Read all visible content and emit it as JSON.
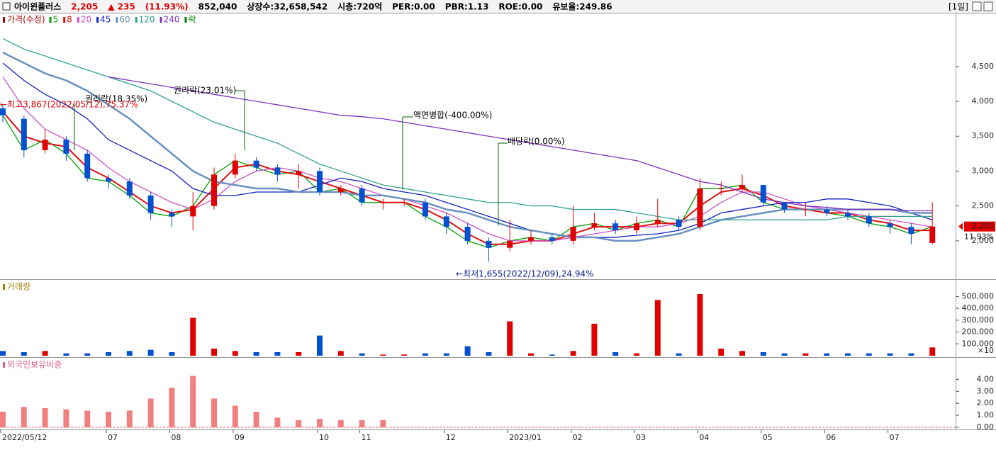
{
  "header": {
    "name": "아이윈플러스",
    "price": "2,205",
    "change": "▲ 235",
    "change_pct": "(11.93%)",
    "volume": "852,040",
    "listed": "상장수:32,658,542",
    "cap": "시총:720억",
    "per": "PER:0.00",
    "pbr": "PBR:1.13",
    "roe": "ROE:0.00",
    "reserve": "유보율:249.86",
    "period": "[1일]"
  },
  "chart_data": [
    {
      "type": "candlestick",
      "title": "가격(수정)",
      "categories": [
        "2022/05/12",
        null,
        null,
        null,
        null,
        "07",
        null,
        null,
        "08",
        null,
        null,
        "09",
        null,
        null,
        null,
        "10",
        null,
        "11",
        null,
        null,
        null,
        "12",
        null,
        null,
        "2023/01",
        null,
        null,
        "02",
        null,
        null,
        "03",
        null,
        null,
        "04",
        null,
        null,
        "05",
        null,
        null,
        "06",
        null,
        null,
        "07",
        null,
        null
      ],
      "open": [
        3900,
        3750,
        3300,
        3450,
        3250,
        2900,
        2850,
        2650,
        2400,
        2350,
        2500,
        2950,
        3150,
        3050,
        2950,
        3000,
        2700,
        2750,
        2550,
        2550,
        2550,
        2350,
        2200,
        2000,
        1900,
        2000,
        2050,
        2000,
        2200,
        2250,
        2150,
        2250,
        2300,
        2200,
        2750,
        2750,
        2800,
        2550,
        2450,
        2450,
        2400,
        2350,
        2250,
        2200,
        1970
      ],
      "high": [
        3950,
        3800,
        3600,
        3500,
        3300,
        2950,
        2900,
        2700,
        2450,
        2700,
        3050,
        3250,
        3200,
        3100,
        3100,
        3050,
        2800,
        2800,
        2600,
        2600,
        2600,
        2400,
        2250,
        2050,
        2300,
        2150,
        2100,
        2500,
        2400,
        2300,
        2350,
        2600,
        2350,
        2900,
        2850,
        2950,
        2800,
        2550,
        2550,
        2500,
        2450,
        2400,
        2300,
        2250,
        2550
      ],
      "low": [
        3700,
        3200,
        3250,
        3150,
        2850,
        2750,
        2600,
        2300,
        2200,
        2150,
        2450,
        2900,
        3000,
        2850,
        2750,
        2650,
        2650,
        2500,
        2450,
        2500,
        2300,
        2100,
        1950,
        1700,
        1850,
        1950,
        1950,
        1950,
        2150,
        2100,
        2100,
        2200,
        2150,
        2150,
        2650,
        2700,
        2500,
        2400,
        2350,
        2350,
        2300,
        2200,
        2100,
        1950,
        1950
      ],
      "close": [
        3800,
        3300,
        3450,
        3250,
        2900,
        2850,
        2650,
        2400,
        2350,
        2500,
        2950,
        3150,
        3050,
        2950,
        3000,
        2700,
        2750,
        2550,
        2550,
        2550,
        2350,
        2200,
        2000,
        1900,
        2000,
        2050,
        2000,
        2200,
        2250,
        2150,
        2250,
        2300,
        2200,
        2750,
        2750,
        2800,
        2550,
        2450,
        2450,
        2400,
        2350,
        2250,
        2200,
        2100,
        2205
      ],
      "up_color": "#e00000",
      "down_color": "#0050d0",
      "series": [
        {
          "name": "5",
          "color": "#00a000",
          "values": [
            3800,
            3300,
            3450,
            3250,
            2900,
            2850,
            2650,
            2400,
            2350,
            2500,
            2950,
            3150,
            3050,
            2950,
            3000,
            2700,
            2750,
            2550,
            2550,
            2550,
            2350,
            2200,
            2000,
            1900,
            2000,
            2050,
            2000,
            2200,
            2250,
            2150,
            2250,
            2300,
            2200,
            2750,
            2750,
            2800,
            2550,
            2450,
            2450,
            2400,
            2350,
            2250,
            2200,
            2100,
            2205
          ]
        },
        {
          "name": "8",
          "color": "#e01010",
          "values": [
            3850,
            3500,
            3400,
            3350,
            3050,
            2900,
            2700,
            2500,
            2400,
            2450,
            2750,
            3050,
            3100,
            3000,
            2950,
            2850,
            2750,
            2650,
            2550,
            2550,
            2450,
            2300,
            2100,
            1950,
            1950,
            2000,
            2000,
            2100,
            2200,
            2200,
            2200,
            2250,
            2250,
            2500,
            2700,
            2750,
            2650,
            2500,
            2450,
            2400,
            2400,
            2300,
            2250,
            2150,
            2150
          ]
        },
        {
          "name": "20",
          "color": "#d050c8",
          "values": [
            4350,
            3900,
            3600,
            3450,
            3300,
            3050,
            2850,
            2700,
            2550,
            2450,
            2600,
            2850,
            3000,
            3050,
            3000,
            2900,
            2850,
            2750,
            2650,
            2600,
            2500,
            2400,
            2250,
            2100,
            2000,
            2000,
            2000,
            2050,
            2100,
            2150,
            2200,
            2200,
            2250,
            2350,
            2550,
            2700,
            2700,
            2600,
            2500,
            2450,
            2400,
            2350,
            2300,
            2250,
            2200
          ]
        },
        {
          "name": "45",
          "color": "#1020c0",
          "values": [
            4550,
            4300,
            4100,
            3950,
            3750,
            3450,
            3300,
            3150,
            3000,
            2750,
            2650,
            2650,
            2700,
            2700,
            2700,
            2800,
            2900,
            2850,
            2750,
            2700,
            2650,
            2550,
            2450,
            2350,
            2250,
            2150,
            2100,
            2050,
            2050,
            2050,
            2080,
            2100,
            2150,
            2250,
            2400,
            2450,
            2500,
            2550,
            2550,
            2600,
            2600,
            2550,
            2500,
            2400,
            2300
          ]
        },
        {
          "name": "60",
          "color": "#6890c0",
          "values": [
            4700,
            4550,
            4400,
            4300,
            4150,
            3950,
            3750,
            3500,
            3250,
            3000,
            2850,
            2800,
            2750,
            2750,
            2700,
            2700,
            2700,
            2650,
            2650,
            2600,
            2550,
            2450,
            2400,
            2300,
            2200,
            2150,
            2100,
            2050,
            2050,
            2000,
            2000,
            2050,
            2100,
            2200,
            2300,
            2350,
            2400,
            2450,
            2450,
            2450,
            2450,
            2450,
            2450,
            2400,
            2400
          ]
        },
        {
          "name": "120",
          "color": "#30a090",
          "values": [
            4900,
            4750,
            4650,
            4550,
            4450,
            4350,
            4250,
            4150,
            4000,
            3850,
            3700,
            3600,
            3500,
            3400,
            3250,
            3100,
            3000,
            2900,
            2800,
            2750,
            2700,
            2650,
            2600,
            2550,
            2550,
            2500,
            2500,
            2450,
            2450,
            2450,
            2400,
            2350,
            2300,
            2300,
            2300,
            2300,
            2300,
            2300,
            2300,
            2300,
            2350,
            2350,
            2350,
            2350,
            2350
          ]
        },
        {
          "name": "240",
          "color": "#8030c0",
          "values": [
            null,
            null,
            null,
            null,
            null,
            4350,
            4300,
            4250,
            4200,
            4150,
            4100,
            4050,
            4000,
            3950,
            3900,
            3850,
            3800,
            3780,
            3750,
            3700,
            3650,
            3600,
            3550,
            3500,
            3450,
            3400,
            3350,
            3300,
            3250,
            3200,
            3150,
            3050,
            2950,
            2850,
            2800,
            2700,
            2600,
            2550,
            2500,
            2480,
            2450,
            2450,
            2450,
            2430,
            2430
          ]
        }
      ],
      "event_legend": {
        "name": "락",
        "color": "#008000"
      },
      "ylim": [
        1460,
        5250
      ],
      "yticks": [
        {
          "value": 2000,
          "label": "2,000"
        },
        {
          "value": 2500,
          "label": "2,500"
        },
        {
          "value": 3000,
          "label": "3,000"
        },
        {
          "value": 3500,
          "label": "3,500"
        },
        {
          "value": 4000,
          "label": "4,000"
        },
        {
          "value": 4500,
          "label": "4,500"
        }
      ],
      "annotations": [
        "권리락(18.35%)",
        "권리락(23.01%)",
        "액면병합(-400.00%)",
        "배당락(0.00%)",
        "←최고3,867(2022/05/12),75.37%",
        "←최저1,655(2022/12/09),24.94%"
      ],
      "last_label": "2,205",
      "last_change_label": "11.93%"
    },
    {
      "type": "bar",
      "title": "거래량",
      "unit_label": "×10",
      "values": [
        40000,
        30000,
        40000,
        20000,
        20000,
        30000,
        40000,
        50000,
        30000,
        320000,
        60000,
        40000,
        30000,
        30000,
        30000,
        170000,
        40000,
        20000,
        10000,
        10000,
        20000,
        20000,
        80000,
        30000,
        290000,
        20000,
        10000,
        40000,
        270000,
        30000,
        20000,
        470000,
        20000,
        520000,
        60000,
        40000,
        30000,
        20000,
        20000,
        20000,
        20000,
        20000,
        20000,
        20000,
        70000
      ],
      "ylim": [
        0,
        640000
      ],
      "yticks": [
        {
          "value": 100000,
          "label": "100,000"
        },
        {
          "value": 200000,
          "label": "200,000"
        },
        {
          "value": 300000,
          "label": "300,000"
        },
        {
          "value": 400000,
          "label": "400,000"
        },
        {
          "value": 500000,
          "label": "500,000"
        }
      ]
    },
    {
      "type": "bar",
      "title": "외국인보유비중",
      "color": "#f08080",
      "values": [
        1.3,
        1.7,
        1.6,
        1.5,
        1.4,
        1.3,
        1.4,
        2.4,
        3.3,
        4.3,
        2.4,
        1.8,
        1.3,
        0.8,
        0.6,
        0.7,
        0.6,
        0.6,
        0.6,
        0,
        0,
        0,
        0,
        0,
        0,
        0,
        0,
        0,
        0,
        0,
        0,
        0,
        0,
        0,
        0,
        0,
        0,
        0,
        0,
        0,
        0,
        0,
        0,
        0,
        0
      ],
      "ylim": [
        0,
        5.8
      ],
      "yticks": [
        {
          "value": 0,
          "label": "0.00"
        },
        {
          "value": 1,
          "label": "1.00"
        },
        {
          "value": 2,
          "label": "2.00"
        },
        {
          "value": 3,
          "label": "3.00"
        },
        {
          "value": 4,
          "label": "4.00"
        }
      ]
    }
  ]
}
